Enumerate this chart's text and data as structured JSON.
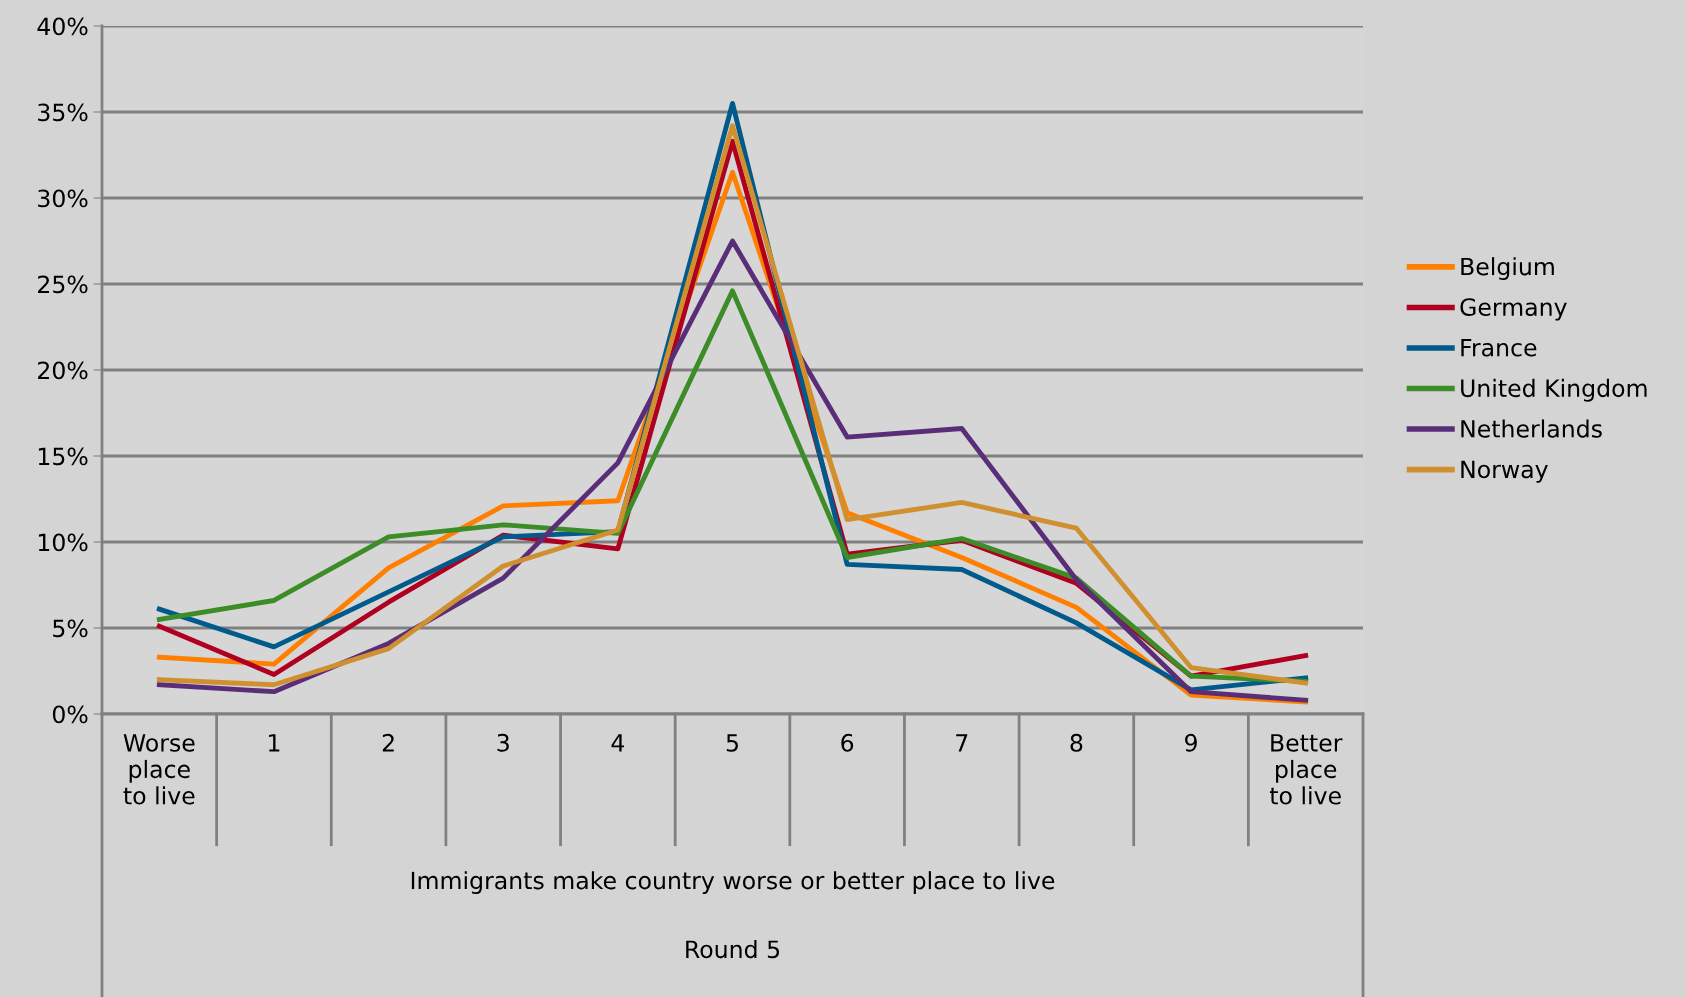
{
  "chart_data": {
    "type": "line",
    "xlabel": "Immigrants make country worse or better place to live",
    "annotations": [
      "Round 5"
    ],
    "categories": [
      "Worse place to live",
      "1",
      "2",
      "3",
      "4",
      "5",
      "6",
      "7",
      "8",
      "9",
      "Better place to live"
    ],
    "series": [
      {
        "name": "Belgium",
        "color": "#ff7f00",
        "values": [
          3.3,
          2.9,
          8.5,
          12.1,
          12.4,
          31.5,
          11.7,
          9.1,
          6.2,
          1.1,
          0.7
        ]
      },
      {
        "name": "Germany",
        "color": "#b00020",
        "values": [
          5.1,
          2.3,
          6.5,
          10.4,
          9.6,
          33.3,
          9.3,
          10.1,
          7.6,
          2.2,
          3.4
        ]
      },
      {
        "name": "France",
        "color": "#005a8c",
        "values": [
          6.1,
          3.9,
          7.1,
          10.3,
          10.6,
          35.5,
          8.7,
          8.4,
          5.3,
          1.4,
          2.1
        ]
      },
      {
        "name": "United Kingdom",
        "color": "#3c8c28",
        "values": [
          5.5,
          6.6,
          10.3,
          11.0,
          10.5,
          24.6,
          9.1,
          10.2,
          7.9,
          2.2,
          1.9
        ]
      },
      {
        "name": "Netherlands",
        "color": "#5a2d78",
        "values": [
          1.7,
          1.3,
          4.1,
          7.9,
          14.6,
          27.5,
          16.1,
          16.6,
          7.8,
          1.3,
          0.8
        ]
      },
      {
        "name": "Norway",
        "color": "#d09030",
        "values": [
          2.0,
          1.7,
          3.8,
          8.6,
          10.7,
          34.2,
          11.3,
          12.3,
          10.8,
          2.7,
          1.8
        ]
      }
    ],
    "ylim": [
      0,
      40
    ],
    "yticks": [
      {
        "value": 0,
        "label": "0%"
      },
      {
        "value": 5,
        "label": "5%"
      },
      {
        "value": 10,
        "label": "10%"
      },
      {
        "value": 15,
        "label": "15%"
      },
      {
        "value": 20,
        "label": "20%"
      },
      {
        "value": 25,
        "label": "25%"
      },
      {
        "value": 30,
        "label": "30%"
      },
      {
        "value": 35,
        "label": "35%"
      },
      {
        "value": 40,
        "label": "40%"
      }
    ],
    "grid": "y",
    "legend": "right",
    "marker": "none",
    "line_style": "solid"
  }
}
